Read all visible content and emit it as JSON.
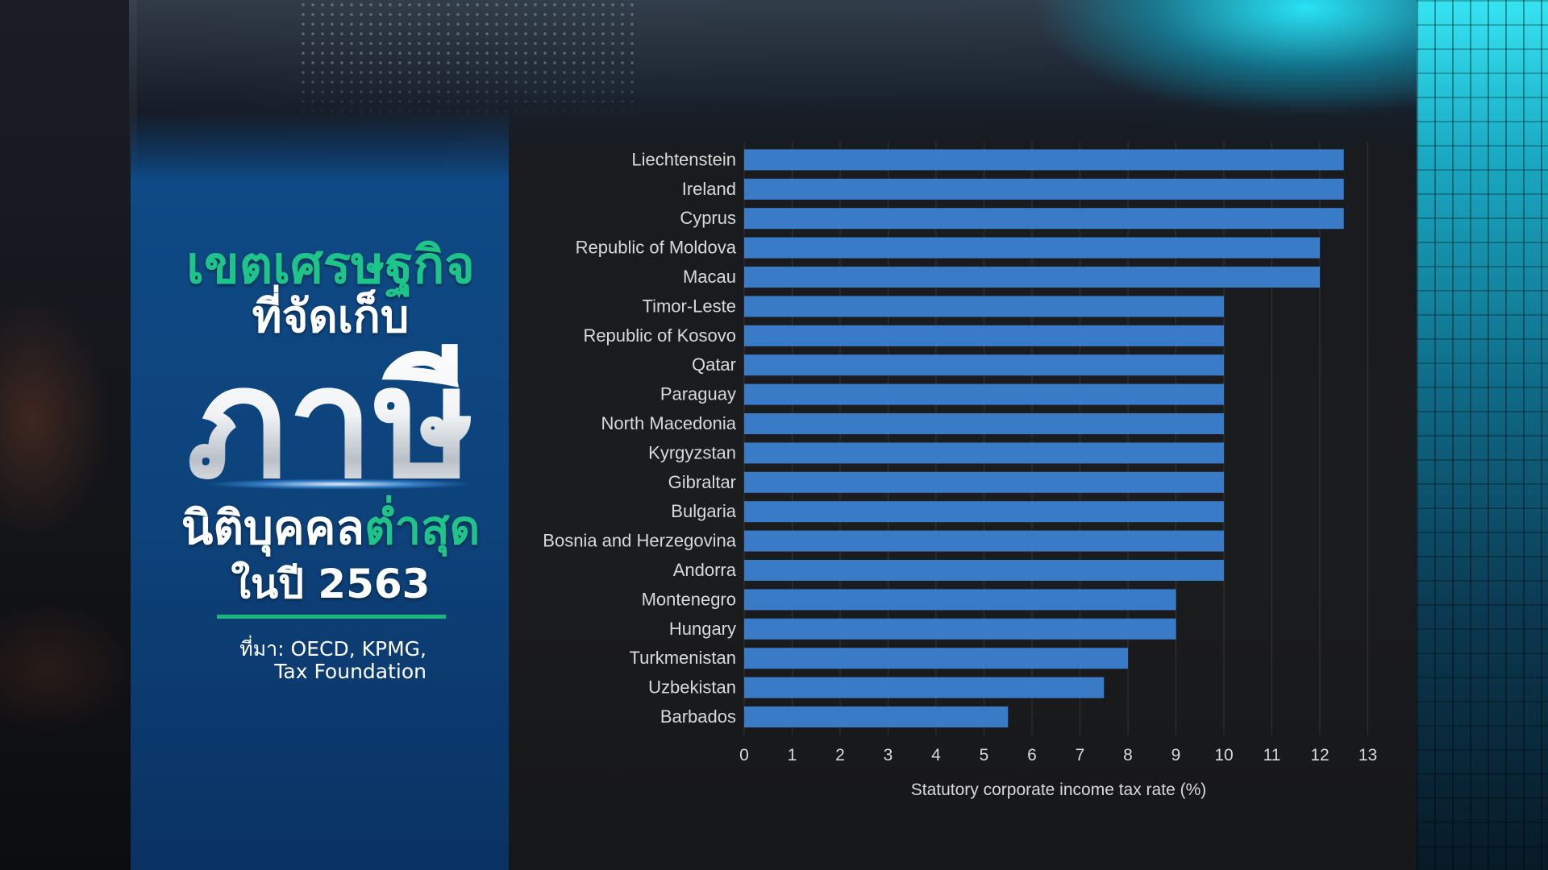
{
  "title": {
    "line1": "เขตเศรษฐกิจ",
    "line2": "ที่จัดเก็บ",
    "line3": "ภาษี",
    "line4a": "นิติบุคคล",
    "line4b": "ต่ำสุด",
    "line5": "ในปี 2563"
  },
  "source": {
    "line1": "ที่มา: OECD, KPMG,",
    "line2": "Tax Foundation"
  },
  "colors": {
    "bar": "#3a7bc8",
    "accent_green": "#1ec48a",
    "panel_blue": "#0f4a86",
    "text_light": "#d9d9d9",
    "grid": "rgba(255,255,255,0.12)"
  },
  "chart_data": {
    "type": "bar",
    "orientation": "horizontal",
    "categories": [
      "Liechtenstein",
      "Ireland",
      "Cyprus",
      "Republic of Moldova",
      "Macau",
      "Timor-Leste",
      "Republic of Kosovo",
      "Qatar",
      "Paraguay",
      "North Macedonia",
      "Kyrgyzstan",
      "Gibraltar",
      "Bulgaria",
      "Bosnia and Herzegovina",
      "Andorra",
      "Montenegro",
      "Hungary",
      "Turkmenistan",
      "Uzbekistan",
      "Barbados"
    ],
    "values": [
      12.5,
      12.5,
      12.5,
      12,
      12,
      10,
      10,
      10,
      10,
      10,
      10,
      10,
      10,
      10,
      10,
      9,
      9,
      8,
      7.5,
      5.5
    ],
    "xlabel": "Statutory corporate income tax rate (%)",
    "xlim": [
      0,
      13
    ],
    "xticks": [
      0,
      1,
      2,
      3,
      4,
      5,
      6,
      7,
      8,
      9,
      10,
      11,
      12,
      13
    ],
    "grid": true,
    "legend": "none"
  }
}
